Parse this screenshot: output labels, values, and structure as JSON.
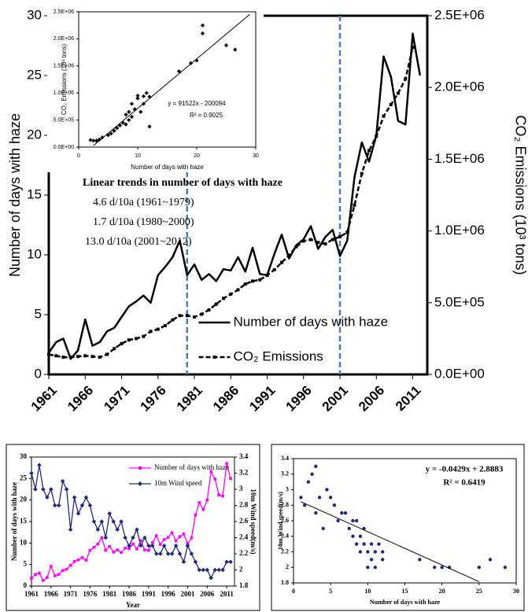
{
  "chart_data": [
    {
      "type": "line",
      "x_label": null,
      "y_label": "Number of days with haze",
      "y2_label": "CO₂ Emissions (10³ tons)",
      "x": [
        1961,
        1962,
        1963,
        1964,
        1965,
        1966,
        1967,
        1968,
        1969,
        1970,
        1971,
        1972,
        1973,
        1974,
        1975,
        1976,
        1977,
        1978,
        1979,
        1980,
        1981,
        1982,
        1983,
        1984,
        1985,
        1986,
        1987,
        1988,
        1989,
        1990,
        1991,
        1992,
        1993,
        1994,
        1995,
        1996,
        1997,
        1998,
        1999,
        2000,
        2001,
        2002,
        2003,
        2004,
        2005,
        2006,
        2007,
        2008,
        2009,
        2010,
        2011,
        2012
      ],
      "series": [
        {
          "name": "Number of days with haze",
          "color": "#000000",
          "dash": false,
          "marker": null,
          "values": [
            1.8,
            2.7,
            3.0,
            1.3,
            2.0,
            4.6,
            2.4,
            2.7,
            3.6,
            3.9,
            4.8,
            5.7,
            6.1,
            6.6,
            6.0,
            8.3,
            9.0,
            9.8,
            11.2,
            8.3,
            9.2,
            7.9,
            8.4,
            7.8,
            8.8,
            8.7,
            9.8,
            8.6,
            10.6,
            8.4,
            8.3,
            10.1,
            11.7,
            9.7,
            10.8,
            11.3,
            12.4,
            10.5,
            11.5,
            12.1,
            9.9,
            11.2,
            16.5,
            19.4,
            17.8,
            20.0,
            26.6,
            24.9,
            21.2,
            20.9,
            28.5,
            25.0
          ]
        },
        {
          "name": "CO₂ Emissions",
          "color": "#000000",
          "dash": true,
          "marker": "square",
          "axis": "y2",
          "values": [
            140000,
            130000,
            120000,
            120000,
            125000,
            130000,
            125000,
            120000,
            140000,
            180000,
            215000,
            240000,
            250000,
            265000,
            300000,
            315000,
            340000,
            380000,
            410000,
            410000,
            400000,
            420000,
            450000,
            490000,
            530000,
            560000,
            590000,
            630000,
            650000,
            660000,
            690000,
            730000,
            780000,
            830000,
            890000,
            930000,
            940000,
            920000,
            910000,
            940000,
            960000,
            990000,
            1180000,
            1400000,
            1560000,
            1660000,
            1800000,
            1880000,
            1960000,
            2060000,
            2280000,
            null
          ]
        }
      ],
      "xlim": [
        1961,
        2013
      ],
      "xticks": [
        1961,
        1966,
        1971,
        1976,
        1981,
        1986,
        1991,
        1996,
        2001,
        2006,
        2011
      ],
      "ylim": [
        0,
        30
      ],
      "yticks": [
        0,
        5,
        10,
        15,
        20,
        25,
        30
      ],
      "y2lim": [
        0,
        2500000
      ],
      "y2ticks": [
        {
          "value": 0,
          "label": "0.0E+00"
        },
        {
          "value": 500000,
          "label": "5.0E+05"
        },
        {
          "value": 1000000,
          "label": "1.0E+06"
        },
        {
          "value": 1500000,
          "label": "1.5E+06"
        },
        {
          "value": 2000000,
          "label": "2.0E+06"
        },
        {
          "value": 2500000,
          "label": "2.5E+06"
        }
      ],
      "vlines": [
        1980,
        2001
      ],
      "vline_color": "#4a7ebb",
      "legend": "lower center",
      "annotations": [
        "Linear trends in number of days with haze",
        "4.6 d/10a (1961~1979)",
        "1.7 d/10a (1980~2000)",
        "13.0 d/10a (2001~2012)"
      ]
    },
    {
      "type": "scatter",
      "x_label": "Number of days with haze",
      "y_label": "CO₂ Emissions (10³ tons)",
      "x": [
        2,
        2.5,
        3,
        3.5,
        4,
        5,
        5.5,
        6,
        6.5,
        7,
        7.5,
        8,
        8,
        8.5,
        8.5,
        9,
        9,
        9.5,
        10,
        10,
        10.5,
        11,
        11,
        11.5,
        12,
        12,
        17,
        19,
        20,
        21,
        21,
        25,
        26.5
      ],
      "values": [
        130000,
        120000,
        120000,
        140000,
        180000,
        220000,
        250000,
        300000,
        350000,
        400000,
        450000,
        420000,
        600000,
        500000,
        650000,
        560000,
        800000,
        700000,
        900000,
        950000,
        650000,
        940000,
        800000,
        1000000,
        930000,
        380000,
        1400000,
        1550000,
        1600000,
        2250000,
        2100000,
        1880000,
        1800000
      ],
      "color": "#000000",
      "marker": "diamond",
      "trendline": {
        "x": [
          2.5,
          29
        ],
        "values": [
          28711,
          2454044
        ]
      },
      "xlim": [
        0,
        30
      ],
      "xticks": [
        0,
        10,
        20,
        30
      ],
      "ylim": [
        0,
        2500000
      ],
      "yticks": [
        {
          "value": 0,
          "label": "0.0E+00"
        },
        {
          "value": 500000,
          "label": "5.0E+05"
        },
        {
          "value": 1000000,
          "label": "1.0E+06"
        },
        {
          "value": 1500000,
          "label": "1.5E+06"
        },
        {
          "value": 2000000,
          "label": "2.0E+06"
        },
        {
          "value": 2500000,
          "label": "2.5E+06"
        }
      ],
      "annotations": [
        "y = 91522x - 200094",
        "R² = 0.9025"
      ]
    },
    {
      "type": "line",
      "x_label": "Year",
      "y_label": "Number of days with haze",
      "y2_label": "10m Wind speed(m/s)",
      "x": [
        1961,
        1962,
        1963,
        1964,
        1965,
        1966,
        1967,
        1968,
        1969,
        1970,
        1971,
        1972,
        1973,
        1974,
        1975,
        1976,
        1977,
        1978,
        1979,
        1980,
        1981,
        1982,
        1983,
        1984,
        1985,
        1986,
        1987,
        1988,
        1989,
        1990,
        1991,
        1992,
        1993,
        1994,
        1995,
        1996,
        1997,
        1998,
        1999,
        2000,
        2001,
        2002,
        2003,
        2004,
        2005,
        2006,
        2007,
        2008,
        2009,
        2010,
        2011,
        2012
      ],
      "series": [
        {
          "name": "Number of days with haze",
          "color": "#ff00ff",
          "dash": false,
          "marker": "square",
          "values": [
            1.8,
            2.7,
            3.0,
            1.3,
            2.0,
            4.6,
            2.4,
            2.7,
            3.6,
            3.9,
            4.8,
            5.7,
            6.1,
            6.6,
            6.0,
            8.3,
            9.0,
            9.8,
            11.2,
            8.3,
            9.2,
            7.9,
            8.4,
            7.8,
            8.8,
            8.7,
            9.8,
            8.6,
            10.6,
            8.4,
            8.3,
            10.1,
            11.7,
            9.7,
            10.8,
            11.3,
            12.4,
            10.5,
            11.5,
            12.1,
            9.9,
            11.2,
            16.5,
            19.4,
            17.8,
            20.0,
            26.6,
            24.9,
            21.2,
            20.9,
            28.5,
            25.0
          ]
        },
        {
          "name": "10m Wind speed",
          "color": "#1f2a7a",
          "dash": false,
          "marker": "diamond",
          "axis": "y2",
          "values": [
            3.2,
            3.0,
            3.3,
            3.0,
            2.9,
            3.0,
            2.8,
            2.8,
            3.1,
            3.0,
            2.5,
            2.9,
            2.7,
            2.8,
            2.9,
            2.8,
            2.6,
            2.5,
            2.6,
            2.4,
            2.7,
            2.6,
            2.5,
            2.6,
            2.4,
            2.3,
            2.4,
            2.5,
            2.3,
            2.4,
            2.3,
            2.3,
            2.2,
            2.2,
            2.3,
            2.2,
            2.2,
            2.3,
            2.2,
            2.1,
            2.3,
            2.2,
            2.1,
            2.0,
            2.0,
            2.0,
            1.9,
            2.0,
            2.0,
            2.0,
            2.1,
            2.1
          ]
        }
      ],
      "xlim": [
        1961,
        2013
      ],
      "xticks": [
        1961,
        1966,
        1971,
        1976,
        1981,
        1986,
        1991,
        1996,
        2001,
        2006,
        2011
      ],
      "ylim": [
        0,
        30
      ],
      "yticks": [
        0,
        5,
        10,
        15,
        20,
        25,
        30
      ],
      "y2lim": [
        1.8,
        3.4
      ],
      "y2ticks": [
        1.8,
        2,
        2.2,
        2.4,
        2.6,
        2.8,
        3,
        3.2,
        3.4
      ],
      "legend": "upper center"
    },
    {
      "type": "scatter",
      "x_label": "Number of days with haze",
      "y_label": "10m Wind speed(m/s)",
      "x": [
        1,
        1.5,
        2,
        2.5,
        3,
        3,
        3.5,
        4,
        4.5,
        5,
        5.5,
        6,
        6.5,
        7,
        7.5,
        8,
        8,
        8.5,
        8.5,
        9,
        9,
        9.5,
        9.5,
        10,
        10,
        10.5,
        10.5,
        11,
        11,
        11.5,
        12,
        12,
        17,
        19,
        20,
        21,
        25,
        26.5,
        28.5
      ],
      "values": [
        2.9,
        2.8,
        3.1,
        3.2,
        2.7,
        3.3,
        2.9,
        2.5,
        3.0,
        2.9,
        2.8,
        2.6,
        2.7,
        2.7,
        2.5,
        2.6,
        2.4,
        2.3,
        2.6,
        2.4,
        2.2,
        2.5,
        2.3,
        2.2,
        2.0,
        2.3,
        2.1,
        2.2,
        2.0,
        2.3,
        2.1,
        2.2,
        2.1,
        2.0,
        2.0,
        2.0,
        2.0,
        2.1,
        2.0
      ],
      "color": "#1f2a7a",
      "marker": "circle",
      "trendline": {
        "x": [
          1,
          25
        ],
        "values": [
          2.845,
          1.816
        ]
      },
      "xlim": [
        0,
        30
      ],
      "xticks": [
        0,
        5,
        10,
        15,
        20,
        25,
        30
      ],
      "ylim": [
        1.8,
        3.4
      ],
      "yticks": [
        1.8,
        2,
        2.2,
        2.4,
        2.6,
        2.8,
        3,
        3.2,
        3.4
      ],
      "annotations": [
        "y = -0.0429x + 2.8883",
        "R² = 0.6419"
      ]
    }
  ]
}
